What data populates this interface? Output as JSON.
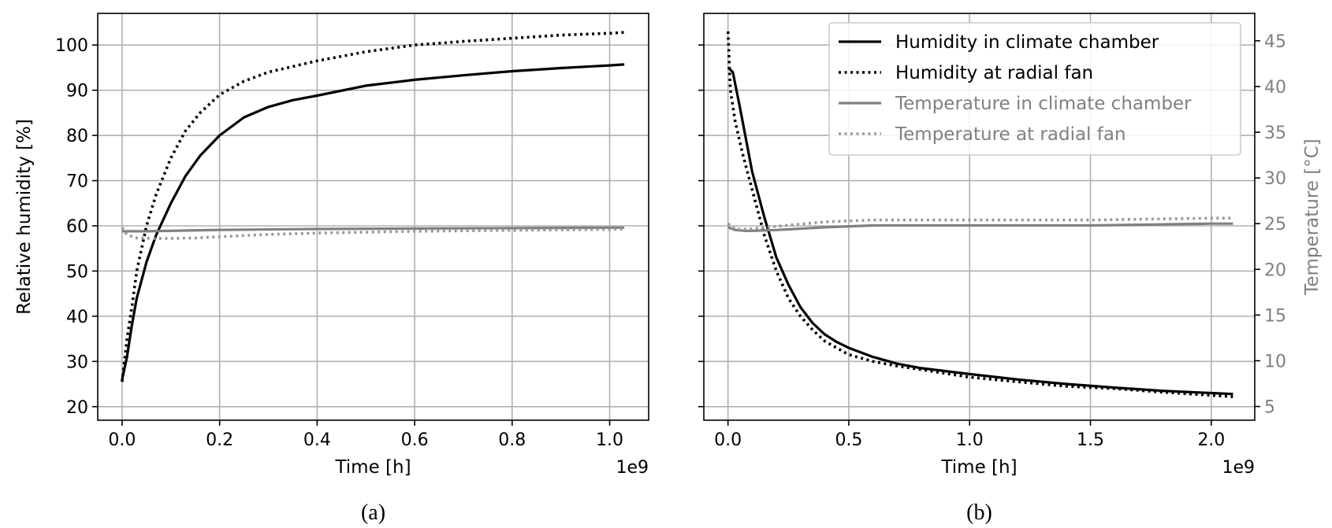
{
  "chart_data": [
    {
      "type": "line",
      "caption": "(a)",
      "xlabel": "Time [h]",
      "ylabel": "Relative humidity [%]",
      "x_offset_label": "1e9",
      "xlim": [
        -0.05,
        1.08
      ],
      "ylim": [
        17,
        107
      ],
      "xticks": [
        0.0,
        0.2,
        0.4,
        0.6,
        0.8,
        1.0
      ],
      "xtick_labels": [
        "0.0",
        "0.2",
        "0.4",
        "0.6",
        "0.8",
        "1.0"
      ],
      "yticks": [
        20,
        30,
        40,
        50,
        60,
        70,
        80,
        90,
        100
      ],
      "ytick_labels": [
        "20",
        "30",
        "40",
        "50",
        "60",
        "70",
        "80",
        "90",
        "100"
      ],
      "grid": true,
      "series": [
        {
          "name": "Humidity in climate chamber",
          "axis": "left",
          "color": "#000000",
          "dash": "solid",
          "x": [
            0.0,
            0.01,
            0.02,
            0.03,
            0.05,
            0.07,
            0.1,
            0.13,
            0.16,
            0.2,
            0.25,
            0.3,
            0.35,
            0.4,
            0.5,
            0.6,
            0.7,
            0.8,
            0.9,
            1.0,
            1.03
          ],
          "y": [
            26,
            31,
            38,
            44,
            52,
            58,
            65,
            71,
            75.5,
            80,
            84,
            86.3,
            87.8,
            88.8,
            91,
            92.3,
            93.3,
            94.2,
            94.9,
            95.5,
            95.7
          ]
        },
        {
          "name": "Humidity at radial fan",
          "axis": "left",
          "color": "#000000",
          "dash": "dotted",
          "x": [
            0.0,
            0.01,
            0.02,
            0.03,
            0.05,
            0.07,
            0.1,
            0.13,
            0.16,
            0.2,
            0.25,
            0.3,
            0.4,
            0.5,
            0.6,
            0.7,
            0.8,
            0.9,
            1.0,
            1.03
          ],
          "y": [
            25.5,
            35,
            42,
            50,
            60,
            67,
            75,
            81,
            85,
            89,
            92,
            94,
            96.5,
            98.5,
            100,
            100.8,
            101.5,
            102.2,
            102.6,
            102.8
          ]
        },
        {
          "name": "Temperature in climate chamber",
          "axis": "left",
          "color": "#808080",
          "dash": "solid",
          "x": [
            0.0,
            0.05,
            0.2,
            0.4,
            0.6,
            0.8,
            1.0,
            1.03
          ],
          "y": [
            58.8,
            58.8,
            59.1,
            59.3,
            59.4,
            59.5,
            59.6,
            59.6
          ]
        },
        {
          "name": "Temperature at radial fan",
          "axis": "left",
          "color": "#999999",
          "dash": "dotted",
          "x": [
            0.0,
            0.01,
            0.03,
            0.08,
            0.15,
            0.2,
            0.3,
            0.4,
            0.6,
            0.8,
            1.0,
            1.03
          ],
          "y": [
            59.6,
            58.0,
            57.3,
            57.2,
            57.3,
            57.6,
            58.1,
            58.4,
            58.8,
            59.0,
            59.2,
            59.3
          ]
        }
      ]
    },
    {
      "type": "line",
      "caption": "(b)",
      "xlabel": "Time [h]",
      "ylabel_right": "Temperature [°C]",
      "x_offset_label": "1e9",
      "xlim": [
        -0.1,
        2.18
      ],
      "ylim": [
        17,
        107
      ],
      "ylim_right": [
        3.5,
        48.0
      ],
      "xticks": [
        0.0,
        0.5,
        1.0,
        1.5,
        2.0
      ],
      "xtick_labels": [
        "0.0",
        "0.5",
        "1.0",
        "1.5",
        "2.0"
      ],
      "yticks": [
        20,
        30,
        40,
        50,
        60,
        70,
        80,
        90,
        100
      ],
      "yticks_right": [
        5,
        10,
        15,
        20,
        25,
        30,
        35,
        40,
        45
      ],
      "ytick_labels_right": [
        "5",
        "10",
        "15",
        "20",
        "25",
        "30",
        "35",
        "40",
        "45"
      ],
      "grid": true,
      "legend": {
        "placement": "top-right",
        "entries": [
          {
            "label": "Humidity in climate chamber",
            "color": "#000000",
            "text_color": "#000000",
            "dash": "solid"
          },
          {
            "label": "Humidity at radial fan",
            "color": "#000000",
            "text_color": "#000000",
            "dash": "dotted"
          },
          {
            "label": "Temperature in climate chamber",
            "color": "#808080",
            "text_color": "#808080",
            "dash": "solid"
          },
          {
            "label": "Temperature at radial fan",
            "color": "#999999",
            "text_color": "#808080",
            "dash": "dotted"
          }
        ]
      },
      "series": [
        {
          "name": "Humidity in climate chamber",
          "axis": "left",
          "color": "#000000",
          "dash": "solid",
          "x": [
            0.0,
            0.02,
            0.05,
            0.1,
            0.15,
            0.2,
            0.25,
            0.3,
            0.35,
            0.4,
            0.45,
            0.5,
            0.6,
            0.7,
            0.8,
            1.0,
            1.2,
            1.4,
            1.6,
            1.8,
            2.0,
            2.09
          ],
          "y": [
            95,
            94,
            86,
            72,
            62,
            53,
            47,
            42,
            38.5,
            36,
            34.3,
            33,
            31,
            29.5,
            28.5,
            27.2,
            26,
            25,
            24.2,
            23.5,
            23,
            22.8
          ]
        },
        {
          "name": "Humidity at radial fan",
          "axis": "left",
          "color": "#000000",
          "dash": "dotted",
          "x": [
            0.0,
            0.01,
            0.03,
            0.06,
            0.1,
            0.15,
            0.2,
            0.25,
            0.3,
            0.35,
            0.4,
            0.5,
            0.6,
            0.7,
            0.8,
            1.0,
            1.2,
            1.4,
            1.6,
            1.8,
            2.0,
            2.09
          ],
          "y": [
            103,
            90,
            83,
            76,
            68,
            58,
            50,
            44,
            40,
            37,
            34.5,
            31.5,
            30,
            29,
            28.2,
            26.5,
            25.5,
            24.5,
            24,
            23.2,
            22.5,
            22.2
          ]
        },
        {
          "name": "Temperature in climate chamber",
          "axis": "right",
          "color": "#808080",
          "dash": "solid",
          "x": [
            0.0,
            0.03,
            0.08,
            0.2,
            0.4,
            0.6,
            1.0,
            1.5,
            2.0,
            2.09
          ],
          "y": [
            24.6,
            24.3,
            24.2,
            24.3,
            24.6,
            24.8,
            24.8,
            24.8,
            25.0,
            25.0
          ]
        },
        {
          "name": "Temperature at radial fan",
          "axis": "right",
          "color": "#999999",
          "dash": "dotted",
          "x": [
            0.0,
            0.03,
            0.08,
            0.2,
            0.4,
            0.6,
            0.8,
            1.0,
            1.5,
            2.0,
            2.09
          ],
          "y": [
            25.0,
            24.4,
            24.4,
            24.7,
            25.2,
            25.4,
            25.4,
            25.4,
            25.4,
            25.6,
            25.6
          ]
        }
      ]
    }
  ]
}
